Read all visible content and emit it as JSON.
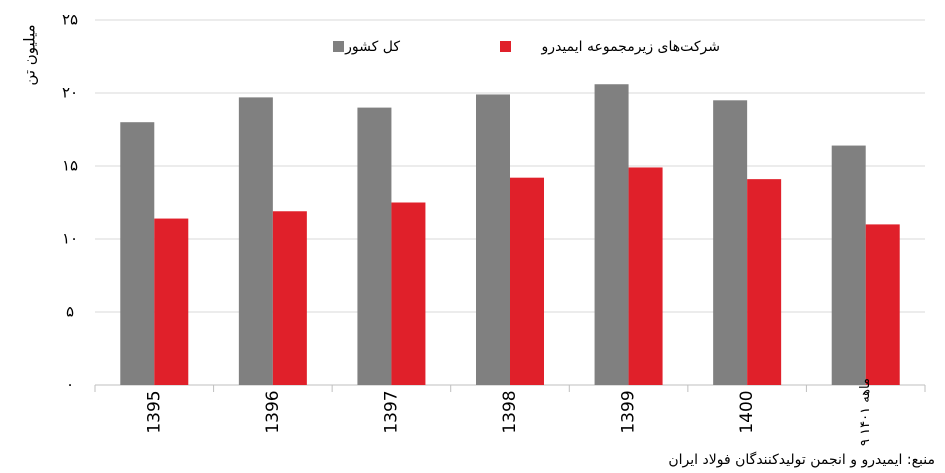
{
  "chart_data": {
    "type": "bar",
    "y_label": "میلیون تن",
    "categories": [
      "1395",
      "1396",
      "1397",
      "1398",
      "1399",
      "1400",
      "۹ ماهه ۱۴۰۱"
    ],
    "series": [
      {
        "name": "کل کشور",
        "color": "#808080",
        "values": [
          18.0,
          19.7,
          19.0,
          19.9,
          20.6,
          19.5,
          16.4
        ]
      },
      {
        "name": "شرکت‌های زیرمجموعه ایمیدرو",
        "color": "#e0202a",
        "values": [
          11.4,
          11.9,
          12.5,
          14.2,
          14.9,
          14.1,
          11.0
        ]
      }
    ],
    "ylim": [
      0,
      25
    ],
    "yticks": [
      {
        "value": 0,
        "label": "۰"
      },
      {
        "value": 5,
        "label": "۵"
      },
      {
        "value": 10,
        "label": "۱۰"
      },
      {
        "value": 15,
        "label": "۱۵"
      },
      {
        "value": 20,
        "label": "۲۰"
      },
      {
        "value": 25,
        "label": "۲۵"
      }
    ],
    "grid": true,
    "legend": "top",
    "source": "منبع: ایمیدرو و انجمن تولیدکنندگان فولاد ایران"
  }
}
